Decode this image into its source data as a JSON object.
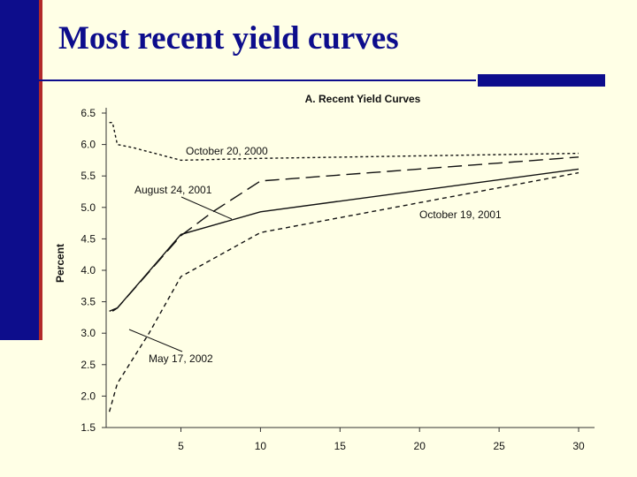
{
  "slide": {
    "title": "Most recent yield curves",
    "colors": {
      "accent": "#0d0d8c",
      "accent_edge": "#b22a2a",
      "background": "#ffffe6"
    }
  },
  "chart_data": {
    "type": "line",
    "title": "A.  Recent Yield Curves",
    "xlabel": "",
    "ylabel": "Percent",
    "xlim": [
      0.3,
      31
    ],
    "ylim": [
      1.5,
      6.5
    ],
    "xticks": [
      5,
      10,
      15,
      20,
      25,
      30
    ],
    "yticks": [
      6.5,
      6.0,
      5.5,
      5.0,
      4.5,
      4.0,
      3.5,
      3.0,
      2.5,
      2.0,
      1.5
    ],
    "grid": false,
    "series": [
      {
        "name": "October 20, 2000",
        "style": "dotted",
        "points": [
          [
            0.5,
            6.35
          ],
          [
            0.7,
            6.35
          ],
          [
            1,
            6.0
          ],
          [
            2,
            5.95
          ],
          [
            5,
            5.75
          ],
          [
            10,
            5.78
          ],
          [
            30,
            5.86
          ]
        ]
      },
      {
        "name": "August 24, 2001",
        "style": "dashed",
        "points": [
          [
            0.7,
            3.35
          ],
          [
            1,
            3.4
          ],
          [
            5,
            4.55
          ],
          [
            7,
            4.93
          ],
          [
            10,
            5.42
          ],
          [
            30,
            5.8
          ]
        ]
      },
      {
        "name": "October 19, 2001",
        "style": "solid",
        "points": [
          [
            0.5,
            3.35
          ],
          [
            1,
            3.4
          ],
          [
            5,
            4.57
          ],
          [
            10,
            4.93
          ],
          [
            30,
            5.61
          ]
        ]
      },
      {
        "name": "May 17, 2002",
        "style": "shortdash",
        "points": [
          [
            0.5,
            1.75
          ],
          [
            1,
            2.2
          ],
          [
            3,
            3.0
          ],
          [
            5,
            3.9
          ],
          [
            10,
            4.6
          ],
          [
            30,
            5.55
          ]
        ]
      }
    ],
    "annotations": [
      {
        "text": "October 20, 2000",
        "series": "October 20, 2000"
      },
      {
        "text": "August 24, 2001",
        "series": "August 24, 2001"
      },
      {
        "text": "October 19, 2001",
        "series": "October 19, 2001"
      },
      {
        "text": "May 17, 2002",
        "series": "May 17, 2002"
      }
    ]
  }
}
